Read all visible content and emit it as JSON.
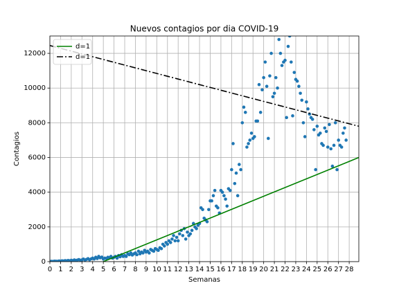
{
  "chart_data": {
    "type": "scatter",
    "title": "Nuevos contagios por dia COVID-19",
    "xlabel": "Semanas",
    "ylabel": "Contagios",
    "xlim": [
      0,
      28.9
    ],
    "ylim": [
      0,
      13000
    ],
    "xticks": [
      0,
      1,
      2,
      3,
      4,
      5,
      6,
      7,
      8,
      9,
      10,
      11,
      12,
      13,
      14,
      15,
      16,
      17,
      18,
      19,
      20,
      21,
      22,
      23,
      24,
      25,
      26,
      27,
      28
    ],
    "yticks": [
      0,
      2000,
      4000,
      6000,
      8000,
      10000,
      12000
    ],
    "grid": true,
    "legend": "upper left",
    "points": {
      "color": "#1f77b4",
      "x": [
        0,
        0.14,
        0.29,
        0.43,
        0.57,
        0.71,
        0.86,
        1,
        1.14,
        1.29,
        1.43,
        1.57,
        1.71,
        1.86,
        2,
        2.14,
        2.29,
        2.43,
        2.57,
        2.71,
        2.86,
        3,
        3.14,
        3.29,
        3.43,
        3.57,
        3.71,
        3.86,
        4,
        4.14,
        4.29,
        4.43,
        4.57,
        4.71,
        4.86,
        5,
        5.14,
        5.29,
        5.43,
        5.57,
        5.71,
        5.86,
        6,
        6.14,
        6.29,
        6.43,
        6.57,
        6.71,
        6.86,
        7,
        7.14,
        7.29,
        7.43,
        7.57,
        7.71,
        7.86,
        8,
        8.14,
        8.29,
        8.43,
        8.57,
        8.71,
        8.86,
        9,
        9.14,
        9.29,
        9.43,
        9.57,
        9.71,
        9.86,
        10,
        10.14,
        10.29,
        10.43,
        10.57,
        10.71,
        10.86,
        11,
        11.14,
        11.29,
        11.43,
        11.57,
        11.71,
        11.86,
        12,
        12.14,
        12.29,
        12.43,
        12.57,
        12.71,
        12.86,
        13,
        13.14,
        13.29,
        13.43,
        13.57,
        13.71,
        13.86,
        14,
        14.14,
        14.29,
        14.43,
        14.57,
        14.71,
        14.86,
        15,
        15.14,
        15.29,
        15.43,
        15.57,
        15.71,
        15.86,
        16,
        16.14,
        16.29,
        16.43,
        16.57,
        16.71,
        16.86,
        17,
        17.14,
        17.29,
        17.43,
        17.57,
        17.71,
        17.86,
        18,
        18.14,
        18.29,
        18.43,
        18.57,
        18.71,
        18.86,
        19,
        19.14,
        19.29,
        19.43,
        19.57,
        19.71,
        19.86,
        20,
        20.14,
        20.29,
        20.43,
        20.57,
        20.71,
        20.86,
        21,
        21.14,
        21.29,
        21.43,
        21.57,
        21.71,
        21.86,
        22,
        22.14,
        22.29,
        22.43,
        22.57,
        22.71,
        22.86,
        23,
        23.14,
        23.29,
        23.43,
        23.57,
        23.71,
        23.86,
        24,
        24.14,
        24.29,
        24.43,
        24.57,
        24.71,
        24.86,
        25,
        25.14,
        25.29,
        25.43,
        25.57,
        25.71,
        25.86,
        26,
        26.14,
        26.29,
        26.43,
        26.57,
        26.71,
        26.86,
        27,
        27.14,
        27.29,
        27.43,
        27.57,
        27.71
      ],
      "values": [
        10,
        20,
        15,
        30,
        25,
        20,
        40,
        30,
        50,
        40,
        60,
        45,
        70,
        50,
        80,
        60,
        100,
        70,
        90,
        120,
        80,
        100,
        150,
        90,
        130,
        170,
        110,
        160,
        200,
        150,
        250,
        180,
        300,
        220,
        260,
        150,
        200,
        180,
        250,
        220,
        300,
        200,
        250,
        300,
        200,
        350,
        280,
        400,
        300,
        350,
        300,
        450,
        400,
        500,
        380,
        450,
        500,
        400,
        600,
        450,
        550,
        500,
        650,
        550,
        600,
        500,
        700,
        650,
        600,
        750,
        700,
        650,
        800,
        750,
        1000,
        900,
        1100,
        1000,
        1200,
        1100,
        1300,
        1500,
        1200,
        1400,
        1200,
        1600,
        1800,
        1500,
        1900,
        1300,
        1700,
        1500,
        1600,
        1800,
        2200,
        2000,
        1900,
        2100,
        2200,
        3100,
        3000,
        2500,
        2400,
        2300,
        3000,
        3500,
        3500,
        3800,
        4100,
        3200,
        3100,
        2800,
        4100,
        4000,
        3800,
        3600,
        3200,
        4200,
        4100,
        5300,
        6800,
        4500,
        5100,
        3800,
        5600,
        5300,
        8000,
        8900,
        8600,
        6600,
        6800,
        7000,
        7400,
        7100,
        7200,
        8100,
        8100,
        10200,
        8600,
        9900,
        10600,
        11500,
        10100,
        7100,
        10700,
        12000,
        9500,
        9700,
        10600,
        10000,
        12800,
        12000,
        11300,
        11500,
        11600,
        8300,
        12400,
        13000,
        11500,
        8400,
        10900,
        10500,
        10400,
        10100,
        9700,
        9300,
        8000,
        7200,
        9200,
        8800,
        8500,
        8300,
        8200,
        7600,
        5300,
        7800,
        7300,
        7400,
        6800,
        6700,
        7700,
        7500,
        6600,
        7900,
        6500,
        5500,
        6700,
        8000,
        5300,
        7000,
        6700,
        6600,
        7400,
        7700,
        7000
      ]
    },
    "series": [
      {
        "name": "d=1",
        "color": "#008000",
        "style": "solid",
        "x": [
          5,
          28.9
        ],
        "values": [
          0,
          6000
        ]
      },
      {
        "name": "d=1",
        "color": "#000000",
        "style": "dashdot",
        "x": [
          0,
          28.9
        ],
        "values": [
          12450,
          7800
        ]
      }
    ]
  }
}
